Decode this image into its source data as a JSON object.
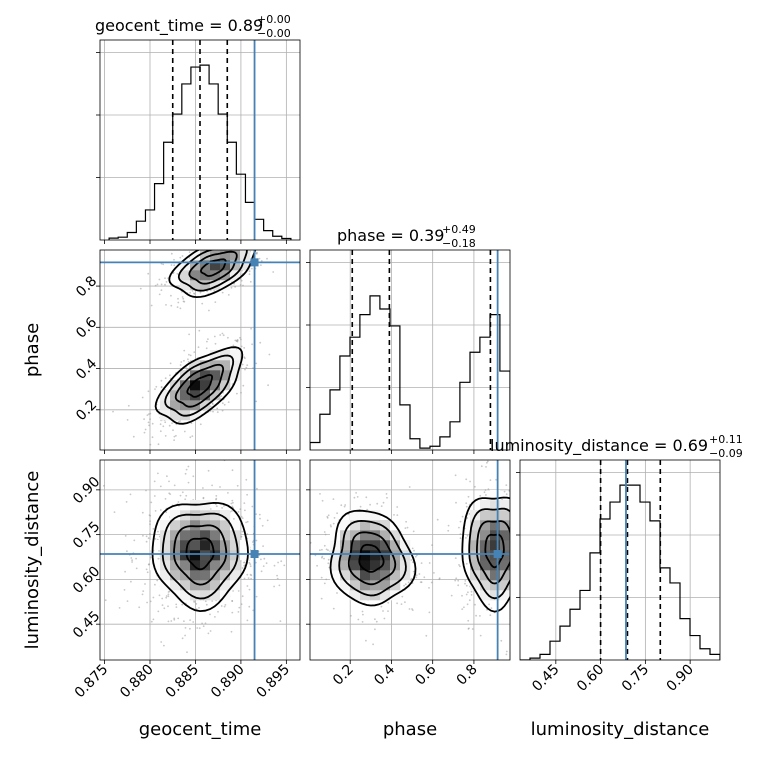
{
  "truth_color": "#4682b4",
  "chart_data": {
    "type": "corner",
    "parameters": [
      "geocent_time",
      "phase",
      "luminosity_distance"
    ],
    "truths": {
      "geocent_time": 0.8915,
      "phase": 0.915,
      "luminosity_distance": 0.685
    },
    "ranges": {
      "geocent_time": [
        0.8745,
        0.8965
      ],
      "phase": [
        0.005,
        0.975
      ],
      "luminosity_distance": [
        0.33,
        1.0
      ]
    },
    "axis_ticks": {
      "geocent_time": {
        "values": [
          0.875,
          0.88,
          0.885,
          0.89,
          0.895
        ],
        "labels": [
          "0.875",
          "0.880",
          "0.885",
          "0.890",
          "0.895"
        ]
      },
      "phase": {
        "values": [
          0.2,
          0.4,
          0.6,
          0.8
        ],
        "labels": [
          "0.2",
          "0.4",
          "0.6",
          "0.8"
        ]
      },
      "luminosity_distance": {
        "values": [
          0.45,
          0.6,
          0.75,
          0.9
        ],
        "labels": [
          "0.45",
          "0.60",
          "0.75",
          "0.90"
        ]
      }
    },
    "marginals": [
      {
        "param": "geocent_time",
        "title_main": "geocent_time = 0.89",
        "title_plus": "+0.00",
        "title_minus": "−0.00",
        "quantiles": [
          0.8825,
          0.8855,
          0.8885
        ],
        "bin_edges": [
          0.8755,
          0.8765,
          0.8775,
          0.8785,
          0.8795,
          0.8805,
          0.8815,
          0.8825,
          0.8835,
          0.8845,
          0.8855,
          0.8865,
          0.8875,
          0.8885,
          0.8895,
          0.8905,
          0.8915,
          0.8925,
          0.8935,
          0.8945,
          0.8955
        ],
        "counts": [
          0.01,
          0.015,
          0.04,
          0.1,
          0.16,
          0.3,
          0.52,
          0.67,
          0.83,
          0.92,
          0.93,
          0.83,
          0.67,
          0.52,
          0.35,
          0.2,
          0.11,
          0.05,
          0.02,
          0.008
        ]
      },
      {
        "param": "phase",
        "title_main": "phase = 0.39",
        "title_plus": "+0.49",
        "title_minus": "−0.18",
        "quantiles": [
          0.21,
          0.39,
          0.88
        ],
        "bin_edges": [
          0.005,
          0.053,
          0.102,
          0.15,
          0.199,
          0.247,
          0.296,
          0.344,
          0.393,
          0.441,
          0.49,
          0.538,
          0.587,
          0.635,
          0.684,
          0.732,
          0.781,
          0.829,
          0.878,
          0.926,
          0.975
        ],
        "counts": [
          0.04,
          0.19,
          0.32,
          0.5,
          0.6,
          0.72,
          0.82,
          0.75,
          0.66,
          0.24,
          0.06,
          0.01,
          0.02,
          0.07,
          0.15,
          0.36,
          0.52,
          0.6,
          0.72,
          0.42
        ]
      },
      {
        "param": "luminosity_distance",
        "title_main": "luminosity_distance = 0.69",
        "title_plus": "+0.11",
        "title_minus": "−0.09",
        "quantiles": [
          0.6,
          0.69,
          0.8
        ],
        "bin_edges": [
          0.33,
          0.3635,
          0.397,
          0.4305,
          0.464,
          0.4975,
          0.531,
          0.5645,
          0.598,
          0.6315,
          0.665,
          0.6985,
          0.732,
          0.7655,
          0.799,
          0.8325,
          0.866,
          0.8995,
          0.933,
          0.9665,
          1.0
        ],
        "counts": [
          0.0,
          0.01,
          0.03,
          0.1,
          0.18,
          0.27,
          0.37,
          0.57,
          0.75,
          0.84,
          0.93,
          0.93,
          0.84,
          0.74,
          0.49,
          0.41,
          0.22,
          0.13,
          0.06,
          0.03
        ]
      }
    ],
    "pairs": [
      {
        "x": "geocent_time",
        "y": "phase",
        "modes": [
          {
            "cx": 0.8855,
            "cy": 0.315,
            "sx": 0.0022,
            "sy": 0.085,
            "rho": 0.6,
            "weight": 1.0
          },
          {
            "cx": 0.887,
            "cy": 0.89,
            "sx": 0.0022,
            "sy": 0.065,
            "rho": 0.5,
            "weight": 0.8
          }
        ]
      },
      {
        "x": "geocent_time",
        "y": "luminosity_distance",
        "modes": [
          {
            "cx": 0.8855,
            "cy": 0.69,
            "sx": 0.0025,
            "sy": 0.085,
            "rho": 0.0,
            "weight": 1.0
          }
        ]
      },
      {
        "x": "phase",
        "y": "luminosity_distance",
        "modes": [
          {
            "cx": 0.3,
            "cy": 0.67,
            "sx": 0.095,
            "sy": 0.075,
            "rho": -0.1,
            "weight": 1.0
          },
          {
            "cx": 0.9,
            "cy": 0.7,
            "sx": 0.075,
            "sy": 0.09,
            "rho": 0.0,
            "weight": 0.85
          }
        ]
      }
    ]
  }
}
